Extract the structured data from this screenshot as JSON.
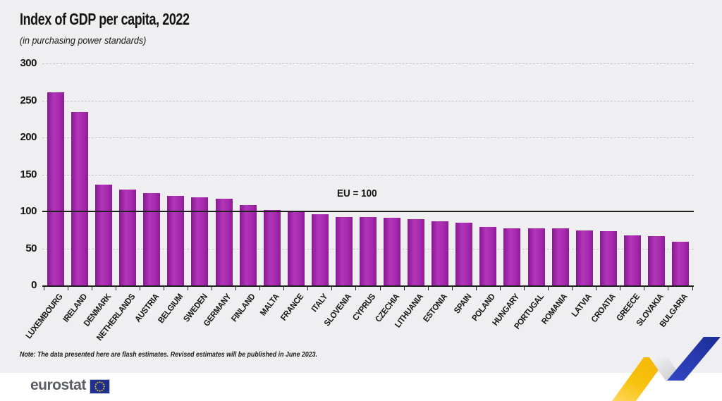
{
  "header": {
    "title": "Index of GDP per capita, 2022",
    "subtitle": "(in purchasing power standards)"
  },
  "chart_data": {
    "type": "bar",
    "title": "Index of GDP per capita, 2022",
    "subtitle": "(in purchasing power standards)",
    "categories": [
      "LUXEMBOURG",
      "IRELAND",
      "DENMARK",
      "NETHERLANDS",
      "AUSTRIA",
      "BELGIUM",
      "SWEDEN",
      "GERMANY",
      "FINLAND",
      "MALTA",
      "FRANCE",
      "ITALY",
      "SLOVENIA",
      "CYPRUS",
      "CZECHIA",
      "LITHUANIA",
      "ESTONIA",
      "SPAIN",
      "POLAND",
      "HUNGARY",
      "PORTUGAL",
      "ROMANIA",
      "LATVIA",
      "CROATIA",
      "GREECE",
      "SLOVAKIA",
      "BULGARIA"
    ],
    "values": [
      261,
      234,
      136,
      130,
      125,
      121,
      119,
      117,
      109,
      102,
      101,
      96,
      92,
      92,
      91,
      90,
      87,
      85,
      79,
      77,
      77,
      77,
      74,
      73,
      68,
      67,
      59
    ],
    "xlabel": "",
    "ylabel": "",
    "ylim": [
      0,
      300
    ],
    "yticks": [
      0,
      50,
      100,
      150,
      200,
      250,
      300
    ],
    "grid": "horizontal-dashed",
    "legend": "none",
    "refline": {
      "value": 100,
      "label": "EU = 100"
    }
  },
  "note": "Note: The data presented here are flash estimates. Revised estimates will be published in June 2023.",
  "footer": {
    "logo_text": "eurostat"
  },
  "colors": {
    "background": "#efeef0",
    "footer_background": "#ffffff",
    "bar": "#a62aae",
    "axis": "#1f1f1f",
    "grid": "#c6c4c6",
    "ribbon_yellow": "#f8c20d",
    "ribbon_blue": "#2236a8",
    "flag_blue": "#1f2f8e",
    "flag_stars": "#f8c20d",
    "logo_gray": "#5a5d63"
  }
}
